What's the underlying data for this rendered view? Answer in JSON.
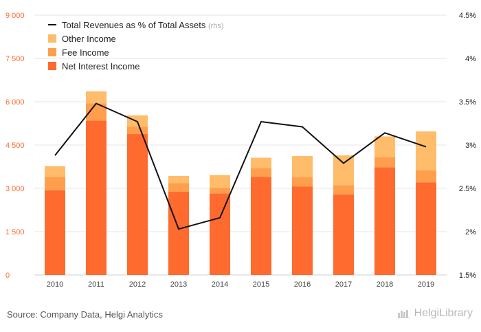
{
  "chart_data": {
    "type": "bar",
    "stacked": true,
    "categories": [
      "2010",
      "2011",
      "2012",
      "2013",
      "2014",
      "2015",
      "2016",
      "2017",
      "2018",
      "2019"
    ],
    "series": [
      {
        "name": "Net Interest Income",
        "color": "#ff6a2e",
        "values": [
          2930,
          5350,
          4880,
          2880,
          2820,
          3400,
          3060,
          2790,
          3730,
          3210
        ]
      },
      {
        "name": "Fee Income",
        "color": "#ff9f4d",
        "values": [
          480,
          590,
          250,
          300,
          210,
          300,
          330,
          320,
          350,
          410
        ]
      },
      {
        "name": "Other Income",
        "color": "#ffbd6b",
        "values": [
          360,
          420,
          400,
          250,
          430,
          360,
          730,
          1030,
          720,
          1350
        ]
      }
    ],
    "line_series": {
      "name": "Total Revenues as % of Total Assets",
      "legend_suffix": "(rhs)",
      "color": "#111111",
      "axis": "right",
      "values": [
        2.88,
        3.48,
        3.27,
        2.03,
        2.16,
        3.27,
        3.21,
        2.79,
        3.14,
        2.98
      ]
    },
    "y_left": {
      "min": 0,
      "max": 9000,
      "ticks": [
        "0",
        "1 500",
        "3 000",
        "4 500",
        "6 000",
        "7 500",
        "9 000"
      ]
    },
    "y_right": {
      "min": 1.5,
      "max": 4.5,
      "ticks": [
        "1.5%",
        "2%",
        "2.5%",
        "3%",
        "3.5%",
        "4%",
        "4.5%"
      ]
    },
    "grid": true,
    "legend_position": "top-left",
    "left_axis_color": "#ff6a2e"
  },
  "footer": {
    "source": "Source: Company Data, Helgi Analytics",
    "brand": "HelgiLibrary"
  }
}
